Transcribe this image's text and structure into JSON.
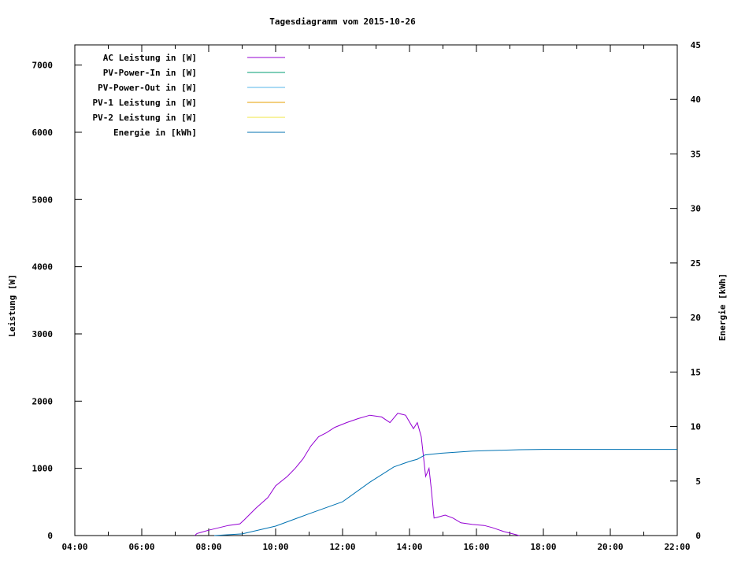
{
  "chart_data": {
    "type": "line",
    "title": "Tagesdiagramm vom 2015-10-26",
    "ylabel": "Leistung [W]",
    "y2label": "Energie [kWh]",
    "xlim": [
      "04:00",
      "22:00"
    ],
    "ylim": [
      0,
      7300
    ],
    "y2lim": [
      0,
      45
    ],
    "xticks": [
      "04:00",
      "06:00",
      "08:00",
      "10:00",
      "12:00",
      "14:00",
      "16:00",
      "18:00",
      "20:00",
      "22:00"
    ],
    "yticks": [
      0,
      1000,
      2000,
      3000,
      4000,
      5000,
      6000,
      7000
    ],
    "y2ticks": [
      0,
      5,
      10,
      15,
      20,
      25,
      30,
      35,
      40,
      45
    ],
    "grid": false,
    "legend_position": "top-left",
    "series": [
      {
        "name": "AC Leistung in [W]",
        "color": "#9400d3",
        "axis": "y",
        "x": [
          "07:35",
          "07:39",
          "08:00",
          "08:35",
          "08:56",
          "09:04",
          "09:25",
          "09:46",
          "10:00",
          "10:21",
          "10:35",
          "10:49",
          "11:03",
          "11:17",
          "11:31",
          "11:46",
          "12:07",
          "12:28",
          "12:49",
          "13:10",
          "13:25",
          "13:39",
          "13:53",
          "14:07",
          "14:14",
          "14:21",
          "14:25",
          "14:29",
          "14:35",
          "14:39",
          "14:44",
          "14:49",
          "15:04",
          "15:18",
          "15:32",
          "15:53",
          "16:14",
          "16:28",
          "16:49",
          "17:17"
        ],
        "values": [
          0,
          30,
          80,
          150,
          175,
          235,
          410,
          565,
          740,
          880,
          1000,
          1140,
          1330,
          1470,
          1530,
          1610,
          1680,
          1740,
          1790,
          1765,
          1680,
          1820,
          1790,
          1590,
          1680,
          1470,
          1180,
          880,
          1000,
          700,
          260,
          270,
          305,
          260,
          190,
          165,
          150,
          120,
          60,
          0
        ]
      },
      {
        "name": "PV-Power-In in [W]",
        "color": "#009e73",
        "axis": "y",
        "x": [],
        "values": []
      },
      {
        "name": "PV-Power-Out in [W]",
        "color": "#56b4e9",
        "axis": "y",
        "x": [],
        "values": []
      },
      {
        "name": "PV-1 Leistung in [W]",
        "color": "#e69f00",
        "axis": "y",
        "x": [],
        "values": []
      },
      {
        "name": "PV-2 Leistung in [W]",
        "color": "#f0e442",
        "axis": "y",
        "x": [],
        "values": []
      },
      {
        "name": "Energie in [kWh]",
        "color": "#0072b2",
        "axis": "y2",
        "x": [
          "08:10",
          "09:00",
          "10:00",
          "11:00",
          "12:00",
          "12:49",
          "13:32",
          "14:00",
          "14:14",
          "14:28",
          "14:56",
          "15:53",
          "17:17",
          "18:00",
          "22:00"
        ],
        "values": [
          0,
          0.15,
          0.87,
          2.0,
          3.1,
          4.9,
          6.3,
          6.8,
          7.0,
          7.4,
          7.55,
          7.75,
          7.87,
          7.9,
          7.9
        ]
      }
    ]
  }
}
